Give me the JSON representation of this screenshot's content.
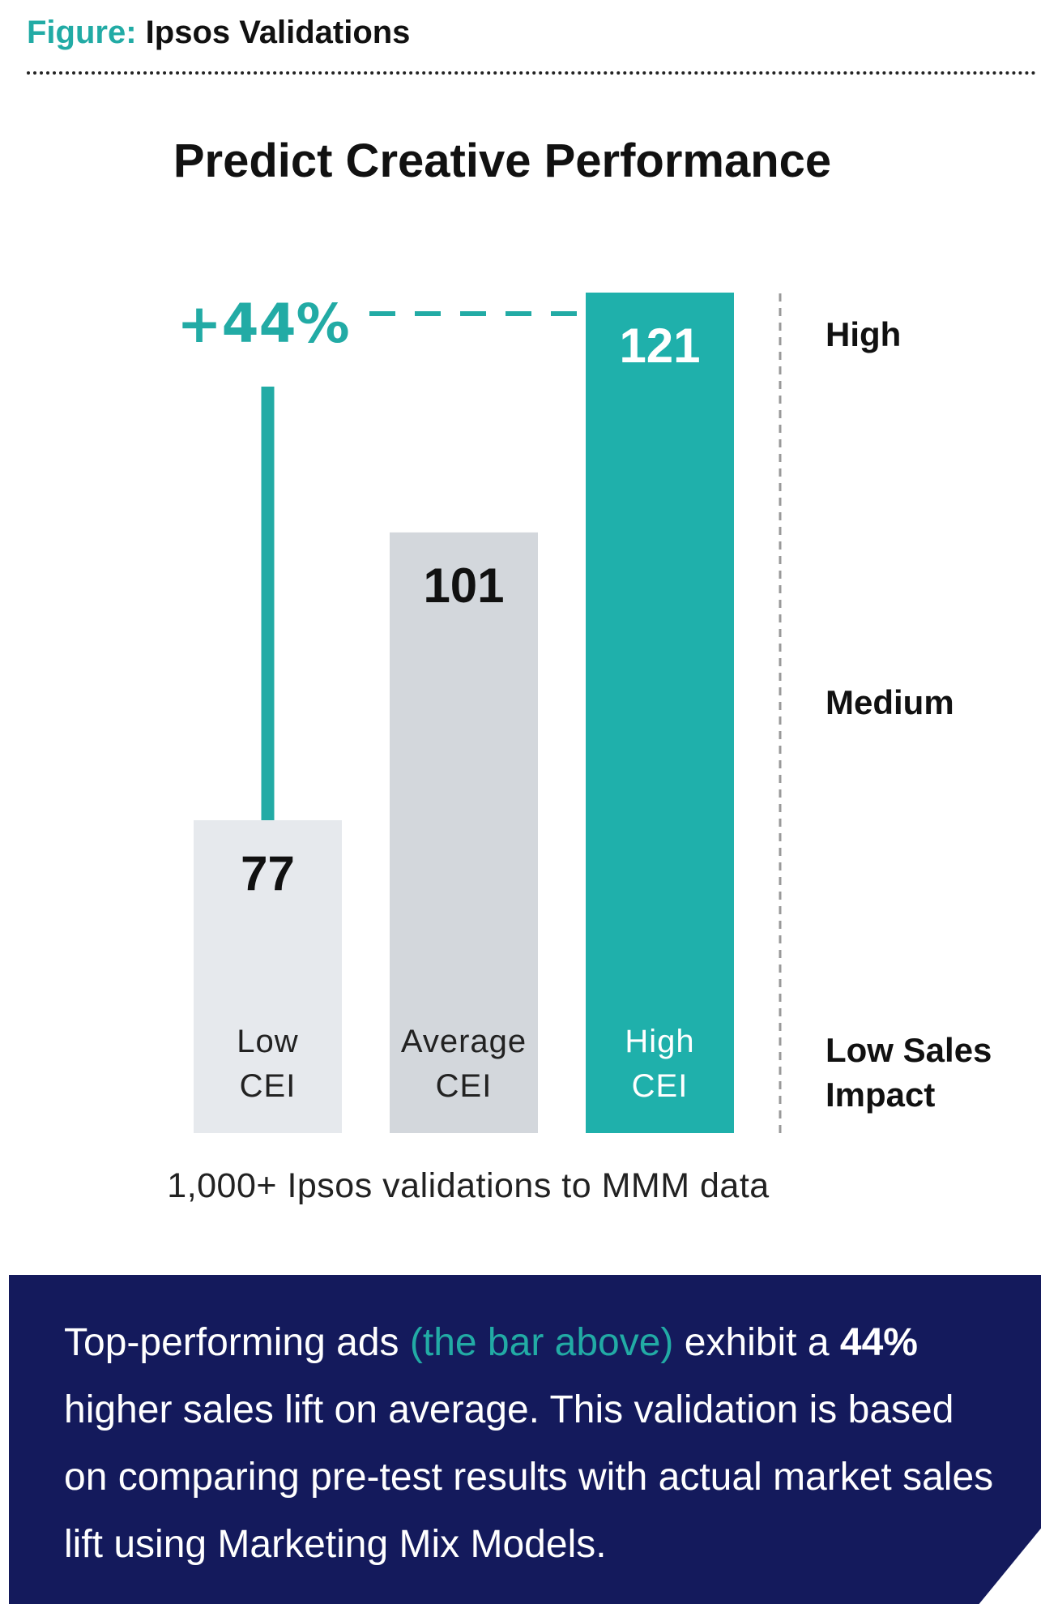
{
  "header": {
    "label": "Figure:",
    "name": "Ipsos Validations"
  },
  "chart_data": {
    "type": "bar",
    "title": "Predict Creative Performance",
    "categories": [
      "Low CEI",
      "Average CEI",
      "High CEI"
    ],
    "category_lines": [
      [
        "Low",
        "CEI"
      ],
      [
        "Average",
        "CEI"
      ],
      [
        "High",
        "CEI"
      ]
    ],
    "values": [
      77,
      101,
      121
    ],
    "value_labels": [
      "77",
      "101",
      "121"
    ],
    "colors": [
      "#e6e9ed",
      "#d3d7dc",
      "#1fb0ab"
    ],
    "value_label_colors": [
      "#111111",
      "#111111",
      "#ffffff"
    ],
    "category_label_colors": [
      "#222222",
      "#222222",
      "#ffffff"
    ],
    "accent": "#22aba5",
    "annotation": "+44%",
    "impact_levels": [
      "High",
      "Medium",
      "Low Sales Impact"
    ],
    "impact_level_lines": [
      [
        "High"
      ],
      [
        "Medium"
      ],
      [
        "Low Sales",
        "Impact"
      ]
    ],
    "footnote": "1,000+ Ipsos validations to MMM data",
    "xlabel": "",
    "ylabel": ""
  },
  "summary": {
    "before": "Top-performing ads",
    "highlight": "(the bar above)",
    "after": "exhibit a",
    "bold": "44%",
    "rest": "higher sales lift on average. This validation is based on comparing pre-test results with actual market sales lift using Marketing Mix Models."
  }
}
